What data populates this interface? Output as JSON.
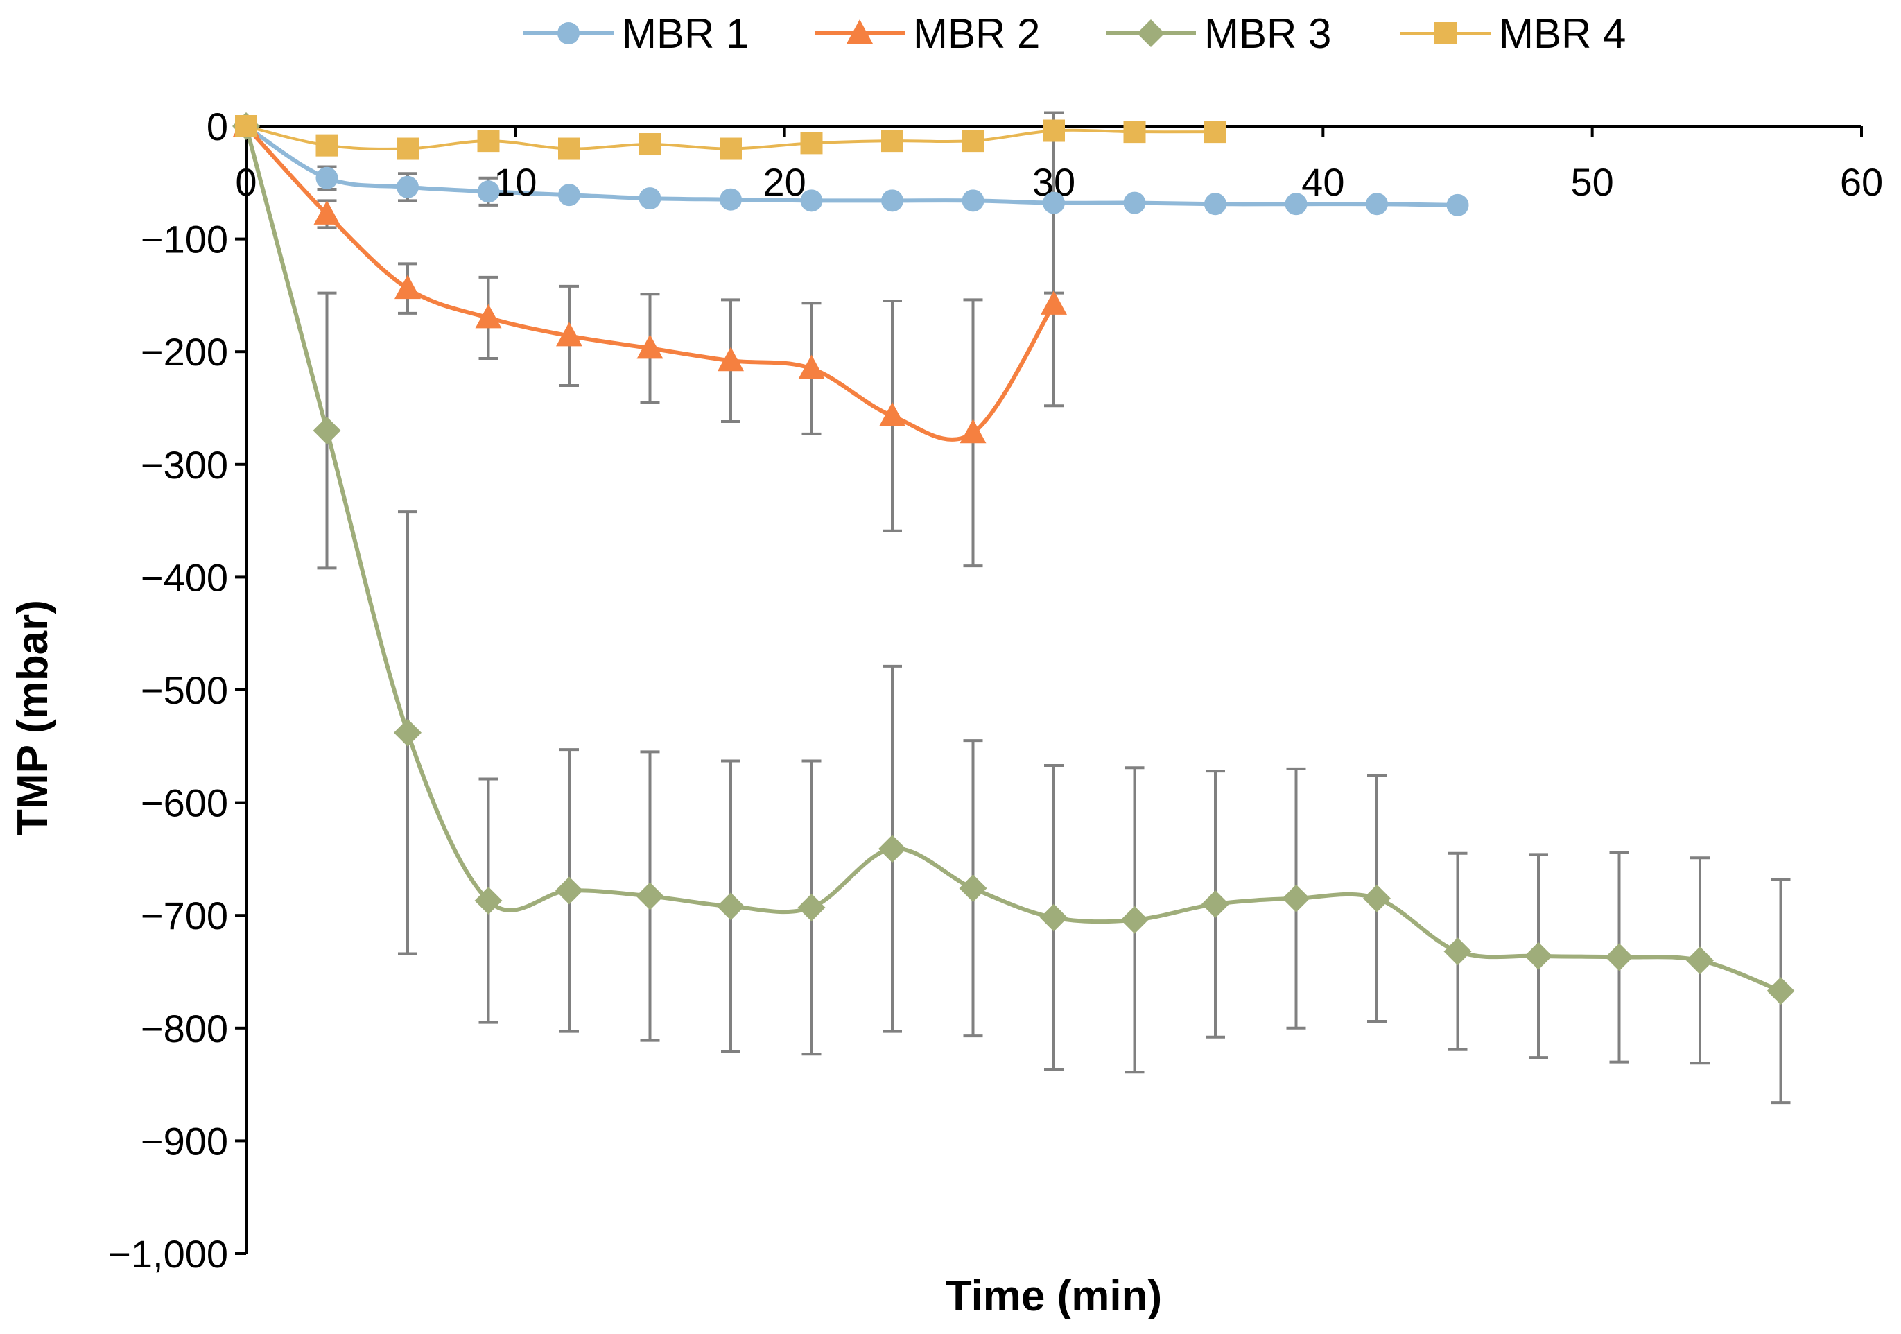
{
  "chart_data": {
    "type": "line",
    "title": "",
    "xlabel": "Time (min)",
    "ylabel": "TMP (mbar)",
    "xlim": [
      0,
      60
    ],
    "ylim": [
      -1000,
      0
    ],
    "x_ticks": [
      0,
      10,
      20,
      30,
      40,
      50,
      60
    ],
    "x_tick_labels": [
      "0",
      "10",
      "20",
      "30",
      "40",
      "50",
      "60"
    ],
    "y_ticks": [
      0,
      -100,
      -200,
      -300,
      -400,
      -500,
      -600,
      -700,
      -800,
      -900,
      -1000
    ],
    "y_tick_labels": [
      "0",
      "−100",
      "−200",
      "−300",
      "−400",
      "−500",
      "−600",
      "−700",
      "−800",
      "−900",
      "−1,000"
    ],
    "legend_position": "top-center",
    "grid": false,
    "error_bar_color": "#808080",
    "series": [
      {
        "name": "MBR 1",
        "color": "#8fb8d8",
        "marker": "circle",
        "x": [
          0,
          3,
          6,
          9,
          12,
          15,
          18,
          21,
          24,
          27,
          30,
          33,
          36,
          39,
          42,
          45
        ],
        "y": [
          0,
          -46,
          -54,
          -58,
          -61,
          -64,
          -65,
          -66,
          -66,
          -66,
          -68,
          -68,
          -69,
          -69,
          -69,
          -70
        ],
        "err": [
          0,
          10,
          12,
          12,
          0,
          0,
          0,
          0,
          0,
          0,
          80,
          0,
          0,
          0,
          0,
          0
        ]
      },
      {
        "name": "MBR 2",
        "color": "#f58040",
        "marker": "triangle",
        "x": [
          0,
          3,
          6,
          9,
          12,
          15,
          18,
          21,
          24,
          27,
          30
        ],
        "y": [
          0,
          -78,
          -144,
          -170,
          -186,
          -197,
          -208,
          -215,
          -257,
          -272,
          -158
        ],
        "err": [
          0,
          12,
          22,
          36,
          44,
          48,
          54,
          58,
          102,
          118,
          90
        ]
      },
      {
        "name": "MBR 3",
        "color": "#9fad7a",
        "marker": "diamond",
        "x": [
          0,
          3,
          6,
          9,
          12,
          15,
          18,
          21,
          24,
          27,
          30,
          33,
          36,
          39,
          42,
          45,
          48,
          51,
          54,
          57
        ],
        "y": [
          0,
          -270,
          -538,
          -687,
          -678,
          -683,
          -692,
          -693,
          -641,
          -676,
          -702,
          -704,
          -690,
          -685,
          -685,
          -732,
          -736,
          -737,
          -740,
          -767
        ],
        "err": [
          0,
          122,
          196,
          108,
          125,
          128,
          129,
          130,
          162,
          131,
          135,
          135,
          118,
          115,
          109,
          87,
          90,
          93,
          91,
          99
        ]
      },
      {
        "name": "MBR 4",
        "color": "#e8b651",
        "marker": "square",
        "x": [
          0,
          3,
          6,
          9,
          12,
          15,
          18,
          21,
          24,
          27,
          30,
          33,
          36
        ],
        "y": [
          0,
          -17,
          -20,
          -13,
          -20,
          -16,
          -20,
          -15,
          -13,
          -13,
          -4,
          -5,
          -5
        ],
        "err": [
          0,
          0,
          0,
          8,
          0,
          0,
          0,
          0,
          0,
          0,
          0,
          0,
          0
        ]
      }
    ]
  }
}
